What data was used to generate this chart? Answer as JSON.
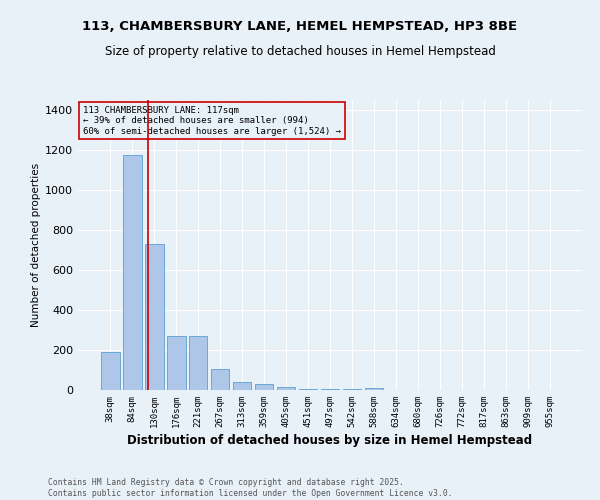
{
  "title": "113, CHAMBERSBURY LANE, HEMEL HEMPSTEAD, HP3 8BE",
  "subtitle": "Size of property relative to detached houses in Hemel Hempstead",
  "xlabel": "Distribution of detached houses by size in Hemel Hempstead",
  "ylabel": "Number of detached properties",
  "bar_color": "#aec6e8",
  "bar_edge_color": "#5a9fd4",
  "background_color": "#e8f0f8",
  "grid_color": "#ffffff",
  "annotation_line_color": "#cc0000",
  "annotation_box_color": "#cc0000",
  "property_size": 117,
  "annotation_text": "113 CHAMBERSBURY LANE: 117sqm\n← 39% of detached houses are smaller (994)\n60% of semi-detached houses are larger (1,524) →",
  "footer_line1": "Contains HM Land Registry data © Crown copyright and database right 2025.",
  "footer_line2": "Contains public sector information licensed under the Open Government Licence v3.0.",
  "categories": [
    "38sqm",
    "84sqm",
    "130sqm",
    "176sqm",
    "221sqm",
    "267sqm",
    "313sqm",
    "359sqm",
    "405sqm",
    "451sqm",
    "497sqm",
    "542sqm",
    "588sqm",
    "634sqm",
    "680sqm",
    "726sqm",
    "772sqm",
    "817sqm",
    "863sqm",
    "909sqm",
    "955sqm"
  ],
  "values": [
    190,
    1175,
    730,
    270,
    270,
    105,
    40,
    30,
    15,
    5,
    5,
    5,
    8,
    1,
    1,
    0,
    0,
    0,
    0,
    0,
    0
  ],
  "ylim": [
    0,
    1450
  ],
  "yticks": [
    0,
    200,
    400,
    600,
    800,
    1000,
    1200,
    1400
  ],
  "figsize": [
    6.0,
    5.0
  ],
  "dpi": 100
}
